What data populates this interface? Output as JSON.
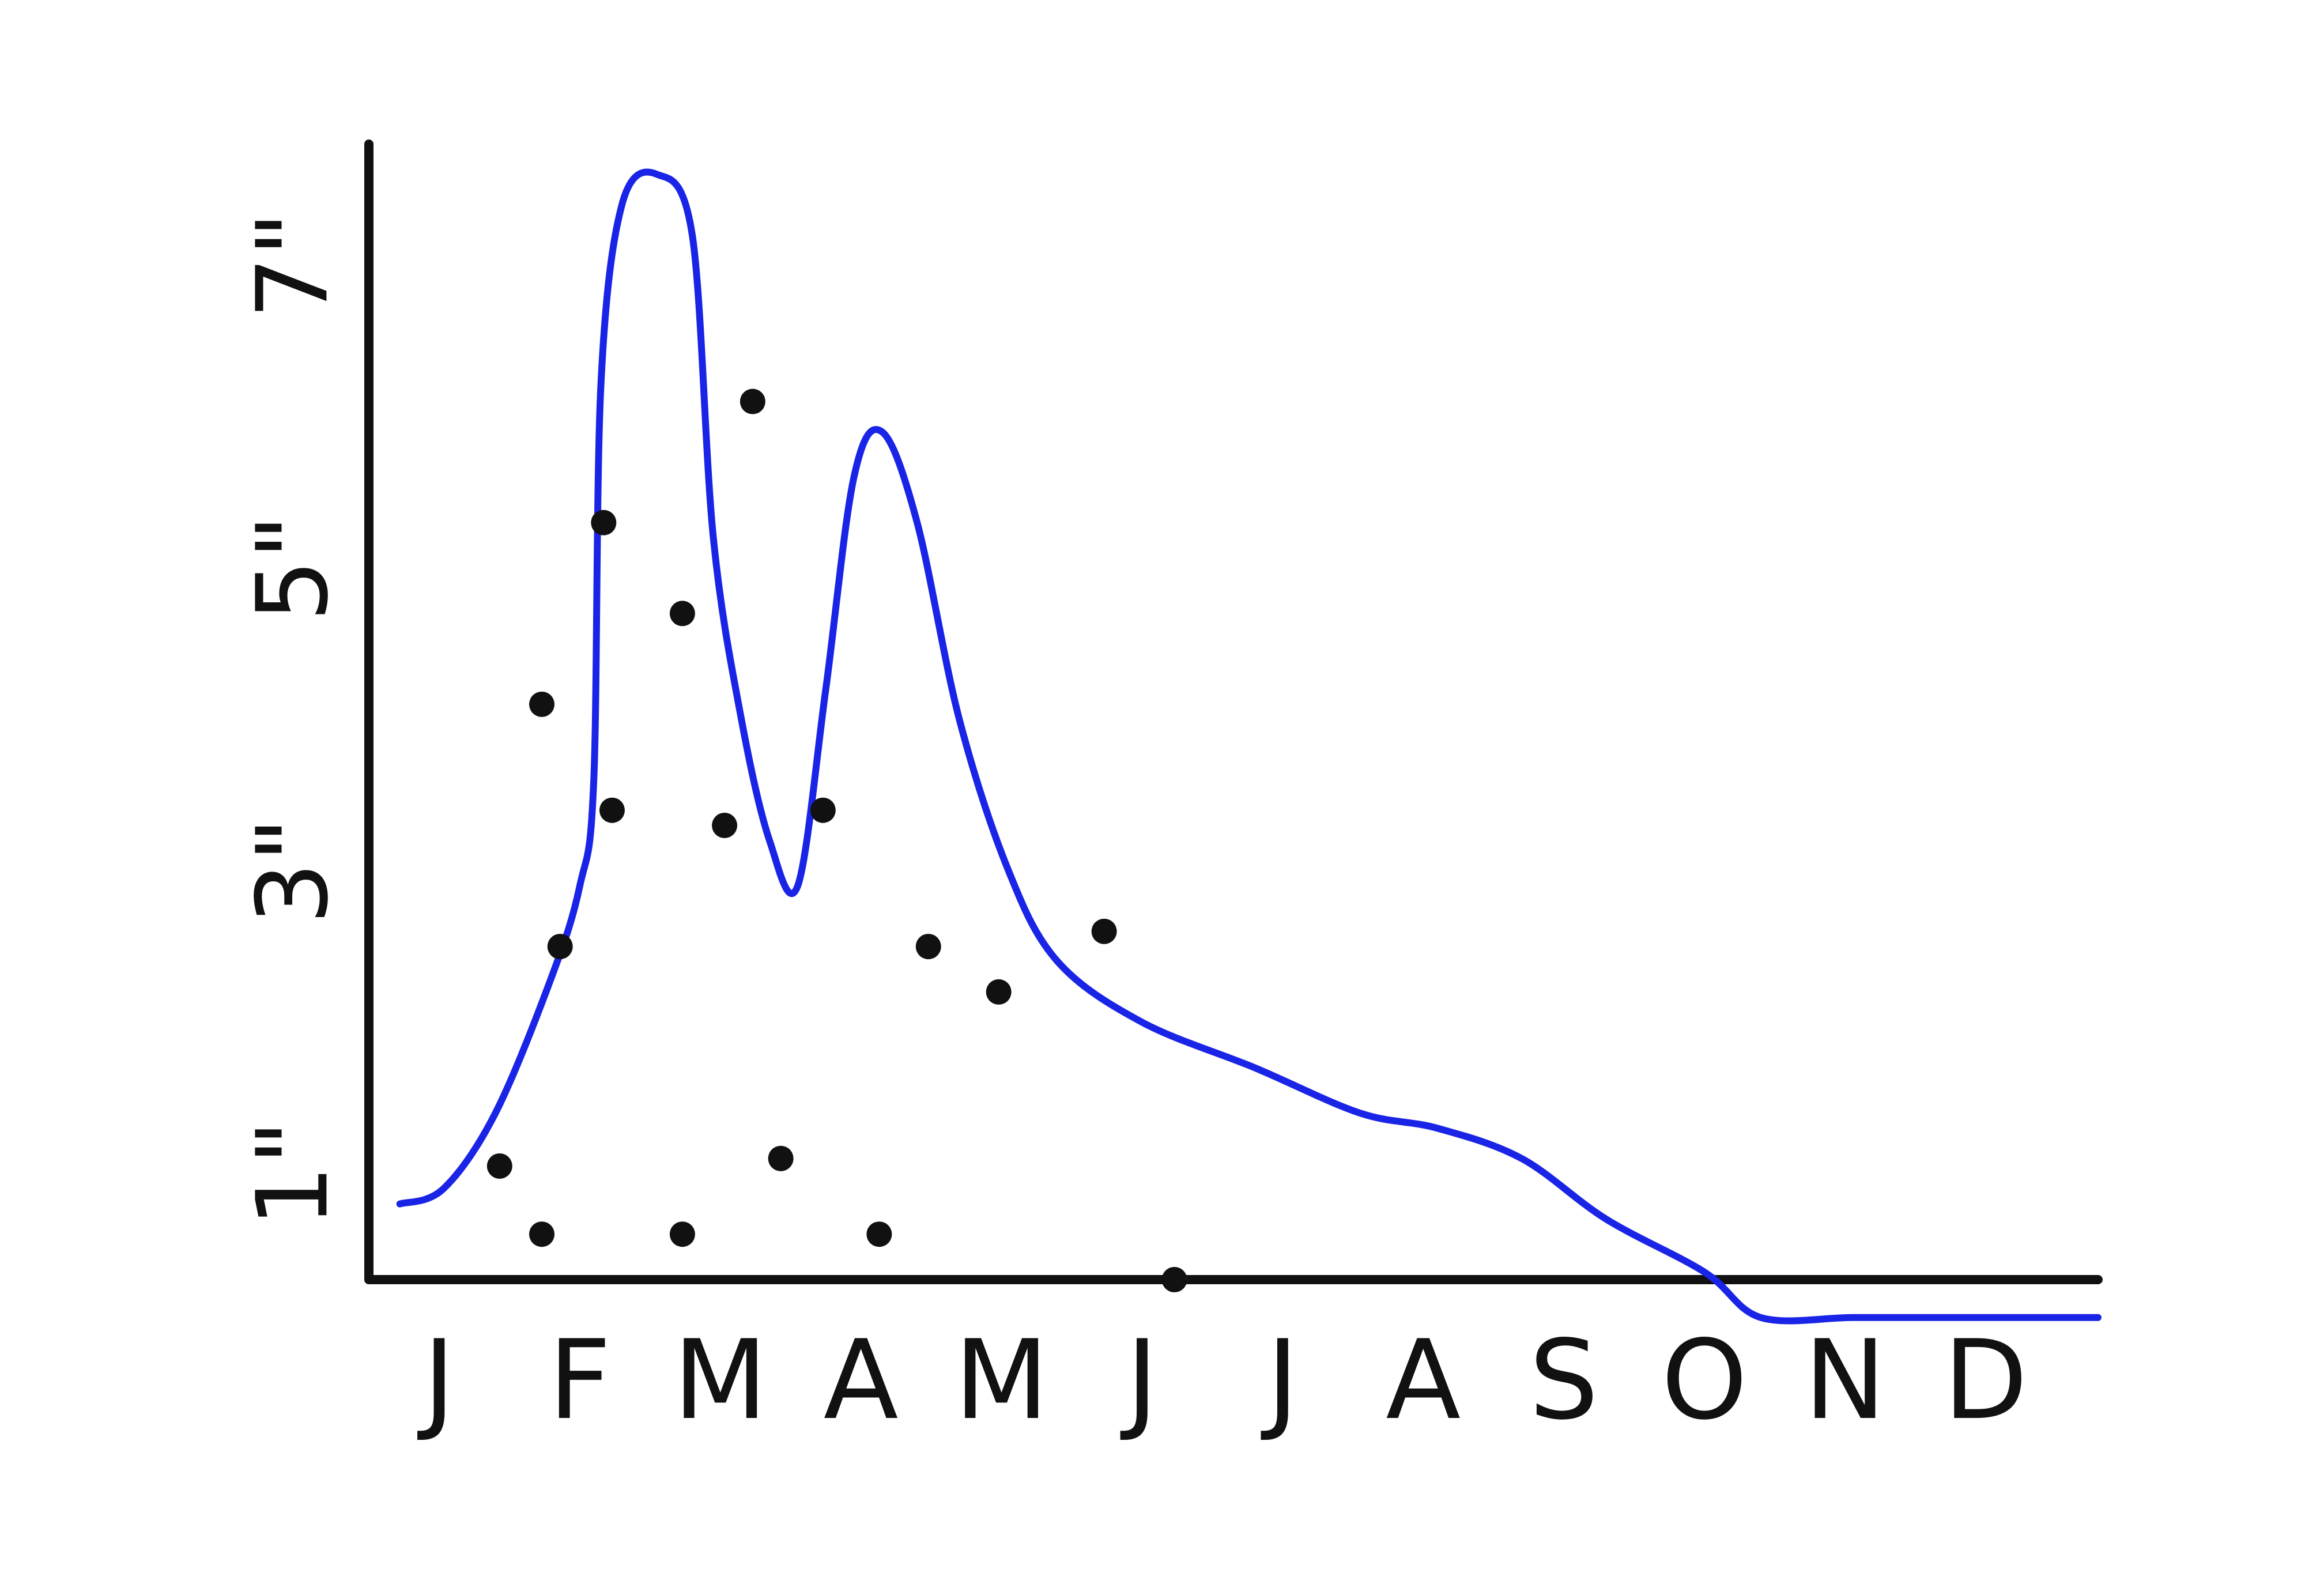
{
  "chart_data": {
    "type": "line",
    "title": "",
    "xlabel": "",
    "ylabel": "",
    "x_ticks": [
      "J",
      "F",
      "M",
      "A",
      "M",
      "J",
      "J",
      "A",
      "S",
      "O",
      "N",
      "D"
    ],
    "y_ticks": [
      "1\"",
      "3\"",
      "5\"",
      "7\""
    ],
    "xlim": [
      0.5,
      12.8
    ],
    "ylim": [
      0.3,
      7.8
    ],
    "grid": false,
    "legend": "none",
    "series": [
      {
        "type": "line",
        "color": "#1a24e6",
        "points": [
          [
            0.72,
            0.8
          ],
          [
            1.03,
            0.9
          ],
          [
            1.4,
            1.4
          ],
          [
            1.8,
            2.3
          ],
          [
            2.0,
            2.9
          ],
          [
            2.1,
            3.6
          ],
          [
            2.15,
            6.2
          ],
          [
            2.3,
            7.4
          ],
          [
            2.55,
            7.6
          ],
          [
            2.8,
            7.2
          ],
          [
            2.95,
            5.2
          ],
          [
            3.15,
            4.0
          ],
          [
            3.35,
            3.2
          ],
          [
            3.55,
            2.9
          ],
          [
            3.75,
            4.2
          ],
          [
            3.95,
            5.6
          ],
          [
            4.15,
            5.9
          ],
          [
            4.4,
            5.3
          ],
          [
            4.7,
            4.0
          ],
          [
            5.05,
            3.0
          ],
          [
            5.4,
            2.4
          ],
          [
            6.0,
            2.0
          ],
          [
            6.8,
            1.7
          ],
          [
            7.55,
            1.4
          ],
          [
            8.1,
            1.3
          ],
          [
            8.7,
            1.1
          ],
          [
            9.3,
            0.7
          ],
          [
            10.0,
            0.35
          ],
          [
            10.4,
            0.05
          ],
          [
            11.05,
            0.05
          ],
          [
            11.6,
            0.05
          ],
          [
            12.3,
            0.05
          ],
          [
            12.8,
            0.05
          ]
        ]
      },
      {
        "type": "scatter",
        "color": "#111111",
        "points": [
          [
            1.43,
            1.05
          ],
          [
            1.73,
            0.6
          ],
          [
            1.73,
            4.1
          ],
          [
            1.86,
            2.5
          ],
          [
            2.17,
            5.3
          ],
          [
            2.23,
            3.4
          ],
          [
            2.73,
            0.6
          ],
          [
            2.73,
            4.7
          ],
          [
            3.03,
            3.3
          ],
          [
            3.23,
            6.1
          ],
          [
            3.43,
            1.1
          ],
          [
            3.73,
            3.4
          ],
          [
            4.13,
            0.6
          ],
          [
            4.48,
            2.5
          ],
          [
            4.98,
            2.2
          ],
          [
            5.73,
            2.6
          ],
          [
            6.23,
            0.3
          ]
        ]
      }
    ]
  }
}
